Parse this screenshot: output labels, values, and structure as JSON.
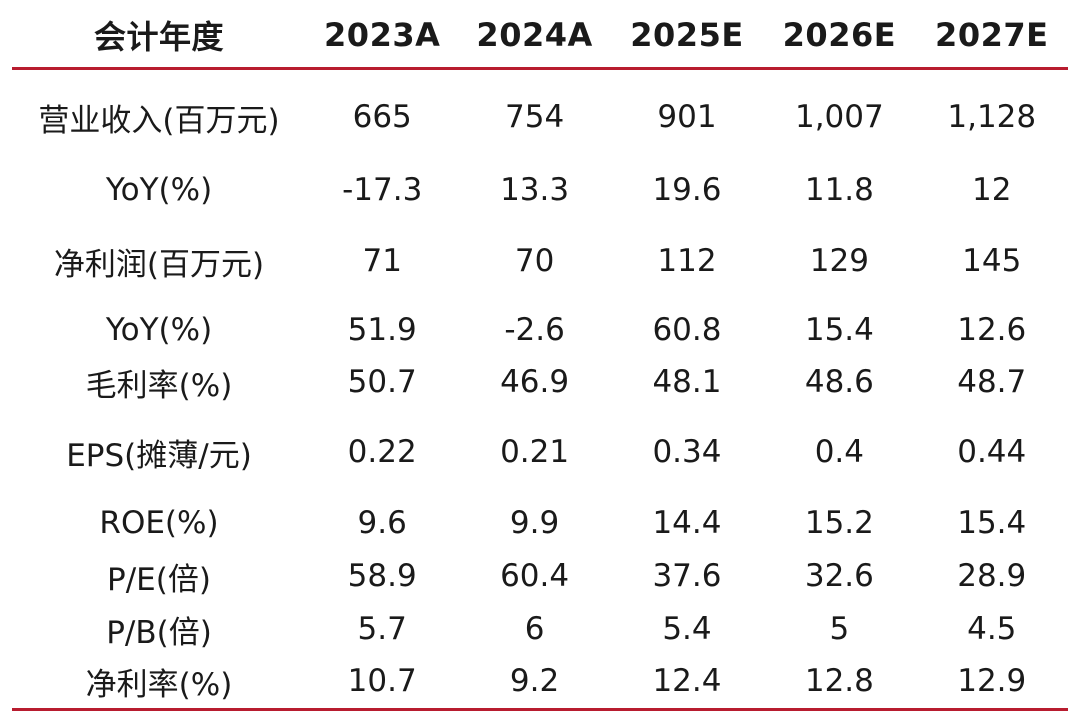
{
  "header": [
    "会计年度",
    "2023A",
    "2024A",
    "2025E",
    "2026E",
    "2027E"
  ],
  "rows": [
    {
      "label": "营业收入(百万元)",
      "values": [
        "665",
        "754",
        "901",
        "1,007",
        "1,128"
      ]
    },
    {
      "label": "YoY(%)",
      "values": [
        "-17.3",
        "13.3",
        "19.6",
        "11.8",
        "12"
      ]
    },
    {
      "label": "净利润(百万元)",
      "values": [
        "71",
        "70",
        "112",
        "129",
        "145"
      ]
    },
    {
      "label": "YoY(%)",
      "values": [
        "51.9",
        "-2.6",
        "60.8",
        "15.4",
        "12.6"
      ]
    },
    {
      "label": "毛利率(%)",
      "values": [
        "50.7",
        "46.9",
        "48.1",
        "48.6",
        "48.7"
      ]
    },
    {
      "label": "EPS(摊薄/元)",
      "values": [
        "0.22",
        "0.21",
        "0.34",
        "0.4",
        "0.44"
      ]
    },
    {
      "label": "ROE(%)",
      "values": [
        "9.6",
        "9.9",
        "14.4",
        "15.2",
        "15.4"
      ]
    },
    {
      "label": "P/E(倍)",
      "values": [
        "58.9",
        "60.4",
        "37.6",
        "32.6",
        "28.9"
      ]
    },
    {
      "label": "P/B(倍)",
      "values": [
        "5.7",
        "6",
        "5.4",
        "5",
        "4.5"
      ]
    },
    {
      "label": "净利率(%)",
      "values": [
        "10.7",
        "9.2",
        "12.4",
        "12.8",
        "12.9"
      ]
    }
  ],
  "colors": {
    "rule": "#b81c2f",
    "text": "#1a1a1a"
  }
}
